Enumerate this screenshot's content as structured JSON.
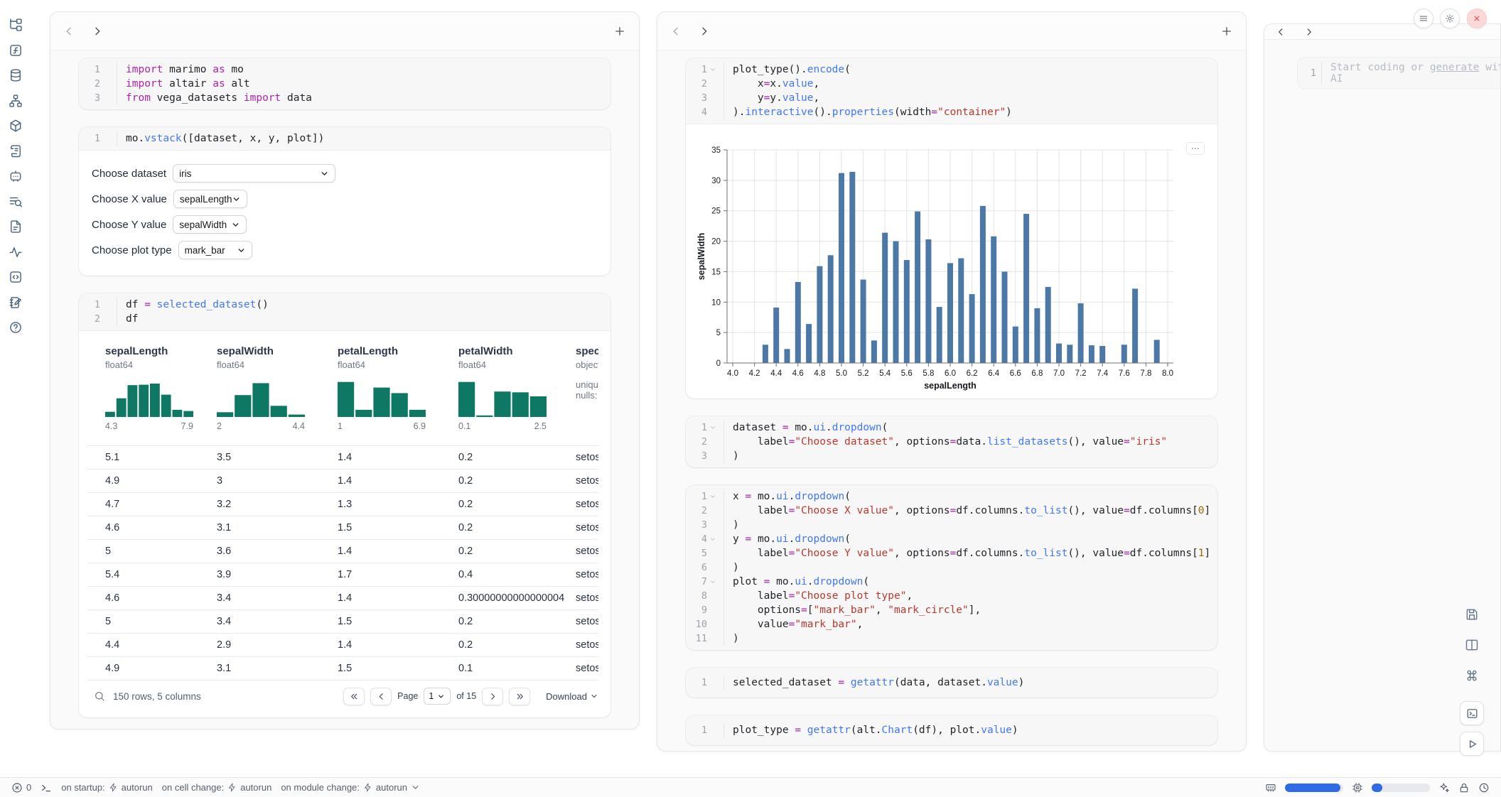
{
  "colors": {
    "hist_teal": "#0f7864",
    "bar_blue": "#4c78a8",
    "accent_blue": "#2e6be6",
    "close_red": "#d95757"
  },
  "sidebar": {
    "icons": [
      {
        "name": "file-tree-icon"
      },
      {
        "name": "function-square-icon"
      },
      {
        "name": "database-icon"
      },
      {
        "name": "dependency-graph-icon"
      },
      {
        "name": "package-icon"
      },
      {
        "name": "scroll-icon"
      },
      {
        "name": "chat-bot-icon"
      },
      {
        "name": "list-search-icon"
      },
      {
        "name": "document-icon"
      },
      {
        "name": "activity-icon"
      },
      {
        "name": "code-square-icon"
      },
      {
        "name": "notebook-edit-icon"
      },
      {
        "name": "help-circle-icon"
      }
    ]
  },
  "left_panel": {
    "cells": [
      {
        "lines": [
          [
            [
              "k",
              "import "
            ],
            [
              "p",
              "marimo "
            ],
            [
              "k",
              "as "
            ],
            [
              "p",
              "mo"
            ]
          ],
          [
            [
              "k",
              "import "
            ],
            [
              "p",
              "altair "
            ],
            [
              "k",
              "as "
            ],
            [
              "p",
              "alt"
            ]
          ],
          [
            [
              "k",
              "from "
            ],
            [
              "p",
              "vega_datasets "
            ],
            [
              "k",
              "import "
            ],
            [
              "p",
              "data"
            ]
          ]
        ]
      },
      {
        "lines": [
          [
            [
              "p",
              "mo."
            ],
            [
              "f",
              "vstack"
            ],
            [
              "p",
              "([dataset, x, y, plot])"
            ]
          ]
        ],
        "controls": [
          {
            "name": "dataset-select",
            "label": "Choose dataset",
            "value": "iris"
          },
          {
            "name": "x-value-select",
            "label": "Choose X value",
            "value": "sepalLength"
          },
          {
            "name": "y-value-select",
            "label": "Choose Y value",
            "value": "sepalWidth"
          },
          {
            "name": "plot-type-select",
            "label": "Choose plot type",
            "value": "mark_bar"
          }
        ]
      },
      {
        "lines": [
          [
            [
              "p",
              "df "
            ],
            [
              "o",
              "= "
            ],
            [
              "f",
              "selected_dataset"
            ],
            [
              "p",
              "()"
            ]
          ],
          [
            [
              "p",
              "df"
            ]
          ]
        ]
      }
    ]
  },
  "table": {
    "columns": [
      {
        "name": "sepalLength",
        "type": "float64",
        "min": "4.3",
        "max": "7.9",
        "hist": [
          0.13,
          0.47,
          0.8,
          0.81,
          0.84,
          0.56,
          0.18,
          0.15
        ]
      },
      {
        "name": "sepalWidth",
        "type": "float64",
        "min": "2",
        "max": "4.4",
        "hist": [
          0.12,
          0.55,
          0.85,
          0.28,
          0.06
        ]
      },
      {
        "name": "petalLength",
        "type": "float64",
        "min": "1",
        "max": "6.9",
        "hist": [
          0.88,
          0.18,
          0.74,
          0.6,
          0.18
        ]
      },
      {
        "name": "petalWidth",
        "type": "float64",
        "min": "0.1",
        "max": "2.5",
        "hist": [
          0.88,
          0.04,
          0.64,
          0.62,
          0.52
        ]
      },
      {
        "name": "species",
        "type": "object",
        "meta": [
          "unique",
          "nulls:"
        ]
      }
    ],
    "rows": [
      [
        "5.1",
        "3.5",
        "1.4",
        "0.2",
        "setosa"
      ],
      [
        "4.9",
        "3",
        "1.4",
        "0.2",
        "setosa"
      ],
      [
        "4.7",
        "3.2",
        "1.3",
        "0.2",
        "setosa"
      ],
      [
        "4.6",
        "3.1",
        "1.5",
        "0.2",
        "setosa"
      ],
      [
        "5",
        "3.6",
        "1.4",
        "0.2",
        "setosa"
      ],
      [
        "5.4",
        "3.9",
        "1.7",
        "0.4",
        "setosa"
      ],
      [
        "4.6",
        "3.4",
        "1.4",
        "0.30000000000000004",
        "setosa"
      ],
      [
        "5",
        "3.4",
        "1.5",
        "0.2",
        "setosa"
      ],
      [
        "4.4",
        "2.9",
        "1.4",
        "0.2",
        "setosa"
      ],
      [
        "4.9",
        "3.1",
        "1.5",
        "0.1",
        "setosa"
      ]
    ],
    "footer": {
      "summary": "150 rows, 5 columns",
      "page_label": "Page",
      "page_value": "1",
      "of_label": "of 15",
      "download_label": "Download"
    }
  },
  "middle_panel": {
    "cells": [
      {
        "folds": [
          1
        ],
        "lines": [
          [
            [
              "p",
              "plot_type()."
            ],
            [
              "f",
              "encode"
            ],
            [
              "p",
              "("
            ]
          ],
          [
            [
              "p",
              "    x"
            ],
            [
              "o",
              "="
            ],
            [
              "p",
              "x."
            ],
            [
              "f",
              "value"
            ],
            [
              "p",
              ","
            ]
          ],
          [
            [
              "p",
              "    y"
            ],
            [
              "o",
              "="
            ],
            [
              "p",
              "y."
            ],
            [
              "f",
              "value"
            ],
            [
              "p",
              ","
            ]
          ],
          [
            [
              "p",
              ")."
            ],
            [
              "f",
              "interactive"
            ],
            [
              "p",
              "()."
            ],
            [
              "f",
              "properties"
            ],
            [
              "p",
              "(width"
            ],
            [
              "o",
              "="
            ],
            [
              "s",
              "\"container\""
            ],
            [
              "p",
              ")"
            ]
          ]
        ]
      },
      {
        "folds": [
          1
        ],
        "lines": [
          [
            [
              "p",
              "dataset "
            ],
            [
              "o",
              "= "
            ],
            [
              "p",
              "mo."
            ],
            [
              "f",
              "ui"
            ],
            [
              "p",
              "."
            ],
            [
              "f",
              "dropdown"
            ],
            [
              "p",
              "("
            ]
          ],
          [
            [
              "p",
              "    label"
            ],
            [
              "o",
              "="
            ],
            [
              "s",
              "\"Choose dataset\""
            ],
            [
              "p",
              ", options"
            ],
            [
              "o",
              "="
            ],
            [
              "p",
              "data."
            ],
            [
              "f",
              "list_datasets"
            ],
            [
              "p",
              "(), value"
            ],
            [
              "o",
              "="
            ],
            [
              "s",
              "\"iris\""
            ]
          ],
          [
            [
              "p",
              ")"
            ]
          ]
        ]
      },
      {
        "folds": [
          1,
          4,
          7
        ],
        "lines": [
          [
            [
              "p",
              "x "
            ],
            [
              "o",
              "= "
            ],
            [
              "p",
              "mo."
            ],
            [
              "f",
              "ui"
            ],
            [
              "p",
              "."
            ],
            [
              "f",
              "dropdown"
            ],
            [
              "p",
              "("
            ]
          ],
          [
            [
              "p",
              "    label"
            ],
            [
              "o",
              "="
            ],
            [
              "s",
              "\"Choose X value\""
            ],
            [
              "p",
              ", options"
            ],
            [
              "o",
              "="
            ],
            [
              "p",
              "df.columns."
            ],
            [
              "f",
              "to_list"
            ],
            [
              "p",
              "(), value"
            ],
            [
              "o",
              "="
            ],
            [
              "p",
              "df.columns["
            ],
            [
              "n",
              "0"
            ],
            [
              "p",
              "]"
            ]
          ],
          [
            [
              "p",
              ")"
            ]
          ],
          [
            [
              "p",
              "y "
            ],
            [
              "o",
              "= "
            ],
            [
              "p",
              "mo."
            ],
            [
              "f",
              "ui"
            ],
            [
              "p",
              "."
            ],
            [
              "f",
              "dropdown"
            ],
            [
              "p",
              "("
            ]
          ],
          [
            [
              "p",
              "    label"
            ],
            [
              "o",
              "="
            ],
            [
              "s",
              "\"Choose Y value\""
            ],
            [
              "p",
              ", options"
            ],
            [
              "o",
              "="
            ],
            [
              "p",
              "df.columns."
            ],
            [
              "f",
              "to_list"
            ],
            [
              "p",
              "(), value"
            ],
            [
              "o",
              "="
            ],
            [
              "p",
              "df.columns["
            ],
            [
              "n",
              "1"
            ],
            [
              "p",
              "]"
            ]
          ],
          [
            [
              "p",
              ")"
            ]
          ],
          [
            [
              "p",
              "plot "
            ],
            [
              "o",
              "= "
            ],
            [
              "p",
              "mo."
            ],
            [
              "f",
              "ui"
            ],
            [
              "p",
              "."
            ],
            [
              "f",
              "dropdown"
            ],
            [
              "p",
              "("
            ]
          ],
          [
            [
              "p",
              "    label"
            ],
            [
              "o",
              "="
            ],
            [
              "s",
              "\"Choose plot type\""
            ],
            [
              "p",
              ","
            ]
          ],
          [
            [
              "p",
              "    options"
            ],
            [
              "o",
              "="
            ],
            [
              "p",
              "["
            ],
            [
              "s",
              "\"mark_bar\""
            ],
            [
              "p",
              ", "
            ],
            [
              "s",
              "\"mark_circle\""
            ],
            [
              "p",
              "],"
            ]
          ],
          [
            [
              "p",
              "    value"
            ],
            [
              "o",
              "="
            ],
            [
              "s",
              "\"mark_bar\""
            ],
            [
              "p",
              ","
            ]
          ],
          [
            [
              "p",
              ")"
            ]
          ]
        ]
      },
      {
        "lines": [
          [
            [
              "p",
              "selected_dataset "
            ],
            [
              "o",
              "= "
            ],
            [
              "f",
              "getattr"
            ],
            [
              "p",
              "(data, dataset."
            ],
            [
              "f",
              "value"
            ],
            [
              "p",
              ")"
            ]
          ]
        ]
      },
      {
        "lines": [
          [
            [
              "p",
              "plot_type "
            ],
            [
              "o",
              "= "
            ],
            [
              "f",
              "getattr"
            ],
            [
              "p",
              "(alt."
            ],
            [
              "f",
              "Chart"
            ],
            [
              "p",
              "(df), plot."
            ],
            [
              "f",
              "value"
            ],
            [
              "p",
              ")"
            ]
          ]
        ]
      }
    ]
  },
  "chart_data": {
    "type": "bar",
    "title": "",
    "xlabel": "sepalLength",
    "ylabel": "sepalWidth",
    "xlim": [
      4.0,
      8.0
    ],
    "ylim": [
      0,
      35
    ],
    "x_tick_step": 0.2,
    "y_tick_step": 5,
    "grid": true,
    "bar_color": "#4c78a8",
    "x": [
      4.3,
      4.4,
      4.5,
      4.6,
      4.7,
      4.8,
      4.9,
      5.0,
      5.1,
      5.2,
      5.3,
      5.4,
      5.5,
      5.6,
      5.7,
      5.8,
      5.9,
      6.0,
      6.1,
      6.2,
      6.3,
      6.4,
      6.5,
      6.6,
      6.7,
      6.8,
      6.9,
      7.0,
      7.1,
      7.2,
      7.3,
      7.4,
      7.6,
      7.7,
      7.9
    ],
    "values": [
      3.0,
      9.1,
      2.3,
      13.3,
      6.4,
      15.9,
      17.7,
      31.2,
      31.4,
      13.7,
      3.7,
      21.4,
      20.0,
      16.9,
      24.9,
      20.3,
      9.2,
      16.4,
      17.2,
      11.3,
      25.8,
      20.8,
      15.0,
      6.0,
      24.5,
      9.0,
      12.5,
      3.2,
      3.0,
      9.8,
      2.9,
      2.8,
      3.0,
      12.2,
      3.8
    ]
  },
  "right_panel": {
    "line_number": "1",
    "placeholder": {
      "pre": "Start coding or ",
      "link": "generate",
      "post": " with AI"
    },
    "window_buttons": [
      {
        "name": "menu-icon"
      },
      {
        "name": "gear-icon"
      },
      {
        "name": "close-icon"
      }
    ]
  },
  "float_buttons": [
    {
      "name": "save-button",
      "icon": "floppy-icon"
    },
    {
      "name": "layout-button",
      "icon": "columns-icon"
    },
    {
      "name": "keyboard-shortcuts-button",
      "icon": "command-icon"
    },
    {
      "name": "terminal-button",
      "icon": "terminal-square-icon"
    },
    {
      "name": "run-all-button",
      "icon": "play-icon"
    }
  ],
  "status_bar": {
    "error_count": "0",
    "items": [
      {
        "prefix": "on startup:",
        "label": "autorun"
      },
      {
        "prefix": "on cell change:",
        "label": "autorun"
      },
      {
        "prefix": "on module change:",
        "label": "autorun"
      }
    ],
    "meters": {
      "memory": 0.95,
      "cpu": 0.18
    }
  }
}
